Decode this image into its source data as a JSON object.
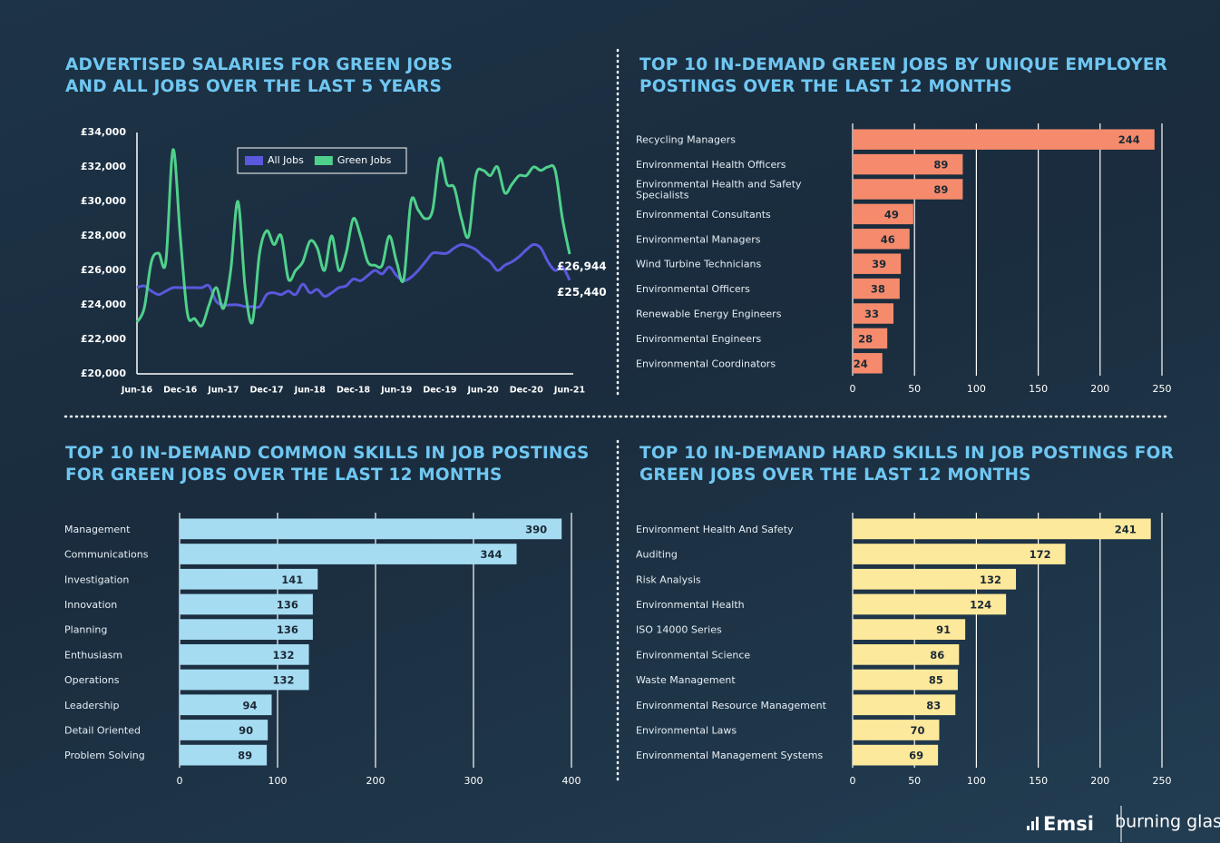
{
  "chart_data": [
    {
      "type": "line",
      "title": "ADVERTISED SALARIES FOR GREEN JOBS AND ALL JOBS OVER THE LAST 5 YEARS",
      "categories": [
        "Jun-16",
        null,
        null,
        null,
        null,
        null,
        "Dec-16",
        null,
        null,
        null,
        null,
        null,
        "Jun-17",
        null,
        null,
        null,
        null,
        null,
        "Dec-17",
        null,
        null,
        null,
        null,
        null,
        "Jun-18",
        null,
        null,
        null,
        null,
        null,
        "Dec-18",
        null,
        null,
        null,
        null,
        null,
        "Jun-19",
        null,
        null,
        null,
        null,
        null,
        "Dec-19",
        null,
        null,
        null,
        null,
        null,
        "Jun-20",
        null,
        null,
        null,
        null,
        null,
        "Dec-20",
        null,
        null,
        null,
        null,
        null,
        "Jun-21"
      ],
      "series": [
        {
          "name": "All Jobs",
          "color": "#5a58dc",
          "end_label": "£25,440",
          "values": [
            25000,
            25100,
            24800,
            24600,
            24800,
            25000,
            25000,
            25000,
            25000,
            25000,
            25100,
            24200,
            24000,
            24000,
            24000,
            23900,
            23900,
            23900,
            24600,
            24700,
            24600,
            24800,
            24600,
            25200,
            24700,
            24900,
            24500,
            24700,
            25000,
            25100,
            25500,
            25400,
            25700,
            26000,
            25800,
            26200,
            25700,
            25400,
            25600,
            26000,
            26500,
            27000,
            27000,
            27000,
            27300,
            27500,
            27400,
            27200,
            26800,
            26500,
            26000,
            26300,
            26500,
            26800,
            27200,
            27500,
            27300,
            26500,
            26000,
            26200,
            25440
          ]
        },
        {
          "name": "Green Jobs",
          "color": "#4fd18b",
          "end_label": "£26,944",
          "values": [
            23000,
            23800,
            26500,
            27000,
            26500,
            33000,
            28000,
            23500,
            23200,
            22800,
            24000,
            25000,
            23800,
            26000,
            30000,
            25000,
            23000,
            27000,
            28300,
            27500,
            28000,
            25500,
            26000,
            26500,
            27700,
            27300,
            26000,
            28000,
            26000,
            27000,
            29000,
            28000,
            26500,
            26300,
            26300,
            28000,
            26500,
            25500,
            30000,
            29500,
            29000,
            29500,
            32500,
            31000,
            30800,
            29000,
            28000,
            31500,
            31800,
            31500,
            32000,
            30500,
            31000,
            31500,
            31500,
            32000,
            31800,
            32000,
            31800,
            29000,
            26944
          ]
        }
      ],
      "ylim": [
        20000,
        34000
      ],
      "yticks": [
        {
          "value": 20000,
          "label": "£20,000"
        },
        {
          "value": 22000,
          "label": "£22,000"
        },
        {
          "value": 24000,
          "label": "£24,000"
        },
        {
          "value": 26000,
          "label": "£26,000"
        },
        {
          "value": 28000,
          "label": "£28,000"
        },
        {
          "value": 30000,
          "label": "£30,000"
        },
        {
          "value": 32000,
          "label": "£32,000"
        },
        {
          "value": 34000,
          "label": "£34,000"
        }
      ],
      "legend": "top",
      "grid": false
    },
    {
      "type": "bar",
      "orientation": "horizontal",
      "title": "TOP 10 IN-DEMAND GREEN JOBS BY UNIQUE EMPLOYER POSTINGS OVER THE LAST 12 MONTHS",
      "categories": [
        "Recycling Managers",
        "Environmental Health Officers",
        "Environmental Health and Safety Specialists",
        "Environmental Consultants",
        "Environmental Managers",
        "Wind Turbine Technicians",
        "Environmental Officers",
        "Renewable Energy Engineers",
        "Environmental Engineers",
        "Environmental Coordinators"
      ],
      "values": [
        244,
        89,
        89,
        49,
        46,
        39,
        38,
        33,
        28,
        24
      ],
      "color": "#f58b6c",
      "xlim": [
        0,
        250
      ],
      "xticks": [
        0,
        50,
        100,
        150,
        200,
        250
      ],
      "grid": true
    },
    {
      "type": "bar",
      "orientation": "horizontal",
      "title": "TOP 10 IN-DEMAND COMMON SKILLS IN JOB POSTINGS FOR GREEN JOBS OVER THE LAST 12 MONTHS",
      "categories": [
        "Management",
        "Communications",
        "Investigation",
        "Innovation",
        "Planning",
        "Enthusiasm",
        "Operations",
        "Leadership",
        "Detail Oriented",
        "Problem Solving"
      ],
      "values": [
        390,
        344,
        141,
        136,
        136,
        132,
        132,
        94,
        90,
        89
      ],
      "color": "#a6dcf2",
      "xlim": [
        0,
        400
      ],
      "xticks": [
        0,
        100,
        200,
        300,
        400
      ],
      "grid": true
    },
    {
      "type": "bar",
      "orientation": "horizontal",
      "title": "TOP 10 IN-DEMAND HARD SKILLS IN JOB POSTINGS FOR GREEN JOBS OVER THE LAST 12 MONTHS",
      "categories": [
        "Environment Health And Safety",
        "Auditing",
        "Risk Analysis",
        "Environmental Health",
        "ISO 14000 Series",
        "Environmental Science",
        "Waste Management",
        "Environmental Resource Management",
        "Environmental Laws",
        "Environmental Management Systems"
      ],
      "values": [
        241,
        172,
        132,
        124,
        91,
        86,
        85,
        83,
        70,
        69
      ],
      "color": "#fde99b",
      "xlim": [
        0,
        250
      ],
      "xticks": [
        0,
        50,
        100,
        150,
        200,
        250
      ],
      "grid": true
    }
  ],
  "footer": {
    "logos": [
      "Emsi",
      "burning glass"
    ]
  }
}
